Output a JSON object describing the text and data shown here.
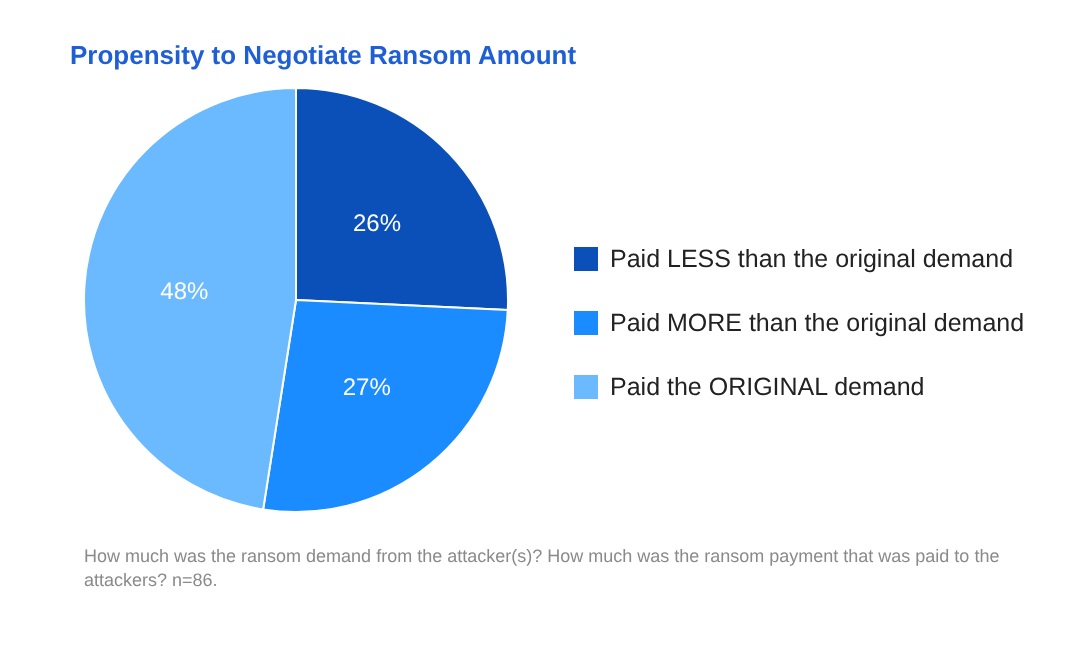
{
  "chart_data": {
    "type": "pie",
    "title": "Propensity to Negotiate Ransom Amount",
    "categories": [
      "Paid LESS than the original demand",
      "Paid MORE than the original demand",
      "Paid the ORIGINAL demand"
    ],
    "values": [
      26,
      27,
      48
    ],
    "value_labels": [
      "26%",
      "27%",
      "48%"
    ],
    "colors": [
      "#0a50b8",
      "#1a8cff",
      "#6bb9ff"
    ],
    "legend": "right",
    "annotations": [
      "How much was the ransom demand from the attacker(s)? How much was the ransom payment that was paid to the attackers? n=86."
    ]
  }
}
